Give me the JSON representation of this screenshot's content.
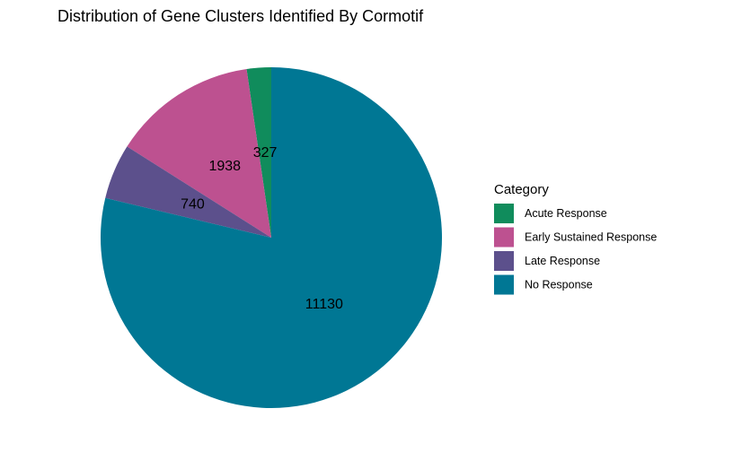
{
  "chart_data": {
    "type": "pie",
    "title": "Distribution of Gene Clusters Identified By Cormotif",
    "legend_title": "Category",
    "legend_position": "right",
    "slices": [
      {
        "label": "Acute Response",
        "value": 327,
        "color": "#108c5c"
      },
      {
        "label": "Early Sustained Response",
        "value": 1938,
        "color": "#bd5190"
      },
      {
        "label": "Late Response",
        "value": 740,
        "color": "#5c508c"
      },
      {
        "label": "No Response",
        "value": 11130,
        "color": "#007794"
      }
    ]
  }
}
